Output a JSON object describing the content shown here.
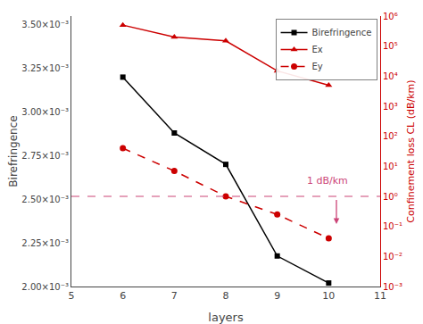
{
  "chart_data": {
    "type": "line",
    "x": [
      6,
      7,
      8,
      9,
      10
    ],
    "series": [
      {
        "name": "Birefringence",
        "color": "#000000",
        "marker": "square",
        "line_style": "solid",
        "values": [
          0.0032,
          0.00288,
          0.0027,
          0.002175,
          0.00202
        ]
      },
      {
        "name": "Ex",
        "color": "#cc0000",
        "marker": "triangle-up",
        "line_style": "solid",
        "axis": "y2",
        "values": [
          500000.0,
          200000.0,
          150000.0,
          15000.0,
          5000.0
        ]
      },
      {
        "name": "Ey",
        "color": "#cc0000",
        "marker": "circle",
        "line_style": "dashed",
        "axis": "y2",
        "values": [
          40,
          7,
          1.0,
          0.25,
          0.04
        ]
      }
    ],
    "xlabel": "layers",
    "ylabel": "Birefringence",
    "y2label": "Confinement loss CL (dB/km)",
    "xlim": [
      5,
      11
    ],
    "xticks": [
      5,
      6,
      7,
      8,
      9,
      10,
      11
    ],
    "ylim": [
      0.002,
      0.00355
    ],
    "yticks": [
      {
        "value": 0.002,
        "label": "2.00×10⁻³"
      },
      {
        "value": 0.00225,
        "label": "2.25×10⁻³"
      },
      {
        "value": 0.0025,
        "label": "2.50×10⁻³"
      },
      {
        "value": 0.00275,
        "label": "2.75×10⁻³"
      },
      {
        "value": 0.003,
        "label": "3.00×10⁻³"
      },
      {
        "value": 0.00325,
        "label": "3.25×10⁻³"
      },
      {
        "value": 0.0035,
        "label": "3.50×10⁻³"
      }
    ],
    "y2lim": [
      0.001,
      1000000.0
    ],
    "y2ticks": [
      {
        "value": 0.001,
        "label": "10⁻³"
      },
      {
        "value": 0.01,
        "label": "10⁻²"
      },
      {
        "value": 0.1,
        "label": "10⁻¹"
      },
      {
        "value": 1,
        "label": "10⁰"
      },
      {
        "value": 10,
        "label": "10¹"
      },
      {
        "value": 100,
        "label": "10²"
      },
      {
        "value": 1000,
        "label": "10³"
      },
      {
        "value": 10000,
        "label": "10⁴"
      },
      {
        "value": 100000,
        "label": "10⁵"
      },
      {
        "value": 1000000,
        "label": "10⁶"
      }
    ],
    "log": "y2",
    "grid": false,
    "legend": "upper right",
    "hline": {
      "y": 1.0,
      "axis": "y2",
      "color": "#cc4477",
      "line_style": "dashed"
    },
    "annotations": [
      {
        "text": "1 dB/km",
        "x": 9.55,
        "y": 1.8,
        "axis": "y2",
        "color": "#cc4477"
      }
    ],
    "arrow": {
      "x": 10.15,
      "y_start": 0.85,
      "y_end": 0.12,
      "axis": "y2",
      "color": "#cc4477"
    }
  }
}
